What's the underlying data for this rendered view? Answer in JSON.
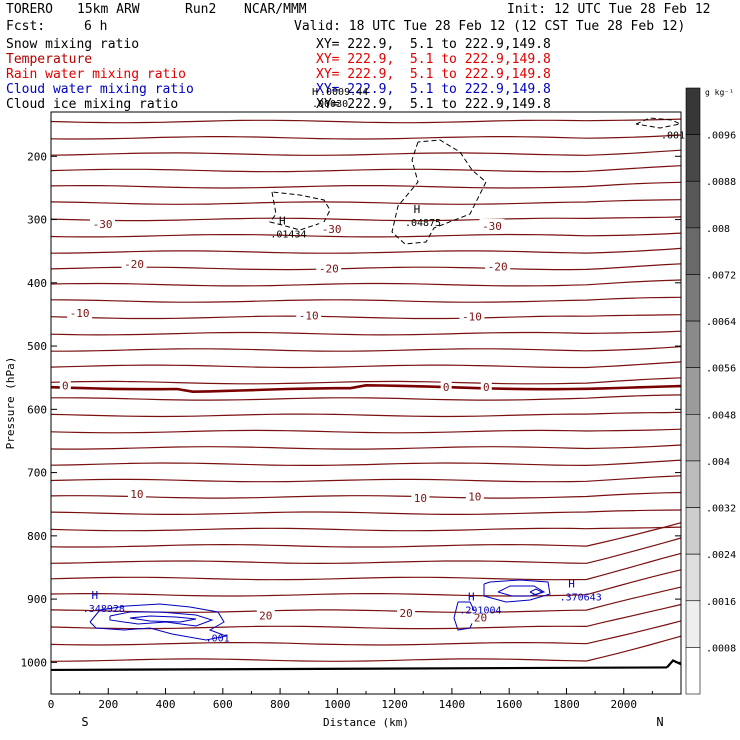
{
  "header": {
    "model": "TORERO",
    "resolution": "15km ARW",
    "run": "Run2",
    "org": "NCAR/MMM",
    "init": "Init: 12 UTC Tue 28 Feb 12",
    "fcst_label": "Fcst:",
    "fcst_value": "6 h",
    "valid": "Valid: 18 UTC Tue 28 Feb 12 (12 CST Tue 28 Feb 12)"
  },
  "fields": [
    {
      "name": "Snow mixing ratio",
      "xy": "XY= 222.9,  5.1 to 222.9,149.8",
      "color": "#000000"
    },
    {
      "name": "Temperature",
      "xy": "XY= 222.9,  5.1 to 222.9,149.8",
      "color": "#b00000"
    },
    {
      "name": "Rain water mixing ratio",
      "xy": "XY= 222.9,  5.1 to 222.9,149.8",
      "color": "#e00000"
    },
    {
      "name": "Cloud water mixing ratio",
      "xy": "XY= 222.9,  5.1 to 222.9,149.8",
      "color": "#0000c0"
    },
    {
      "name": "Cloud ice mixing ratio",
      "xy": "XY= 222.9,  5.1 to 222.9,149.8",
      "color": "#000000"
    }
  ],
  "overlap_labels": {
    "l1": "H",
    "l2": ".0009.44",
    "l3": ".00030"
  },
  "chart_data": {
    "type": "contour",
    "xlabel": "Distance (km)",
    "ylabel": "Pressure (hPa)",
    "x_ticks": [
      0,
      200,
      400,
      600,
      800,
      1000,
      1200,
      1400,
      1600,
      1800,
      2000
    ],
    "xlim": [
      0,
      2200
    ],
    "y_ticks": [
      200,
      300,
      400,
      500,
      600,
      700,
      800,
      900,
      1000
    ],
    "ylim": [
      130,
      1050
    ],
    "endpoints": {
      "left": "S",
      "right": "N"
    },
    "temperature_contour_labels": [
      {
        "text": "-30",
        "x": 180,
        "p": 307
      },
      {
        "text": "-30",
        "x": 980,
        "p": 315
      },
      {
        "text": "-30",
        "x": 1540,
        "p": 310
      },
      {
        "text": "-20",
        "x": 290,
        "p": 370
      },
      {
        "text": "-20",
        "x": 970,
        "p": 377
      },
      {
        "text": "-20",
        "x": 1560,
        "p": 374
      },
      {
        "text": "-10",
        "x": 100,
        "p": 448
      },
      {
        "text": "-10",
        "x": 900,
        "p": 452
      },
      {
        "text": "-10",
        "x": 1470,
        "p": 453
      },
      {
        "text": "0",
        "x": 50,
        "p": 562
      },
      {
        "text": "0",
        "x": 1380,
        "p": 565
      },
      {
        "text": "0",
        "x": 1520,
        "p": 565
      },
      {
        "text": "10",
        "x": 300,
        "p": 734
      },
      {
        "text": "10",
        "x": 1290,
        "p": 740
      },
      {
        "text": "10",
        "x": 1480,
        "p": 738
      },
      {
        "text": "20",
        "x": 750,
        "p": 926
      },
      {
        "text": "20",
        "x": 1240,
        "p": 922
      },
      {
        "text": "20",
        "x": 1500,
        "p": 929
      }
    ],
    "maxima": [
      {
        "label": "H",
        "value": ".01434",
        "x": 780,
        "p": 308,
        "color": "#000000"
      },
      {
        "label": "H",
        "value": ".04875",
        "x": 1250,
        "p": 290,
        "color": "#000000"
      },
      {
        "label": "H",
        "value": ".348928",
        "x": 125,
        "p": 900,
        "color": "#0000c0"
      },
      {
        "label": "H",
        "value": ".291004",
        "x": 1440,
        "p": 902,
        "color": "#0000c0"
      },
      {
        "label": "H",
        "value": ".370643",
        "x": 1790,
        "p": 882,
        "color": "#0000c0"
      }
    ],
    "small_labels": [
      {
        "text": ".001",
        "x": 2130,
        "p": 172,
        "color": "#000000"
      },
      {
        "text": ".001",
        "x": 540,
        "p": 967,
        "color": "#0000c0"
      }
    ],
    "colorbar": {
      "unit_html": "g kg⁻¹",
      "ticks": [
        ".0096",
        ".0088",
        ".008",
        ".0072",
        ".0064",
        ".0056",
        ".0048",
        ".004",
        ".0032",
        ".0024",
        ".0016",
        ".0008"
      ],
      "max": 0.0104,
      "min": 0
    }
  }
}
